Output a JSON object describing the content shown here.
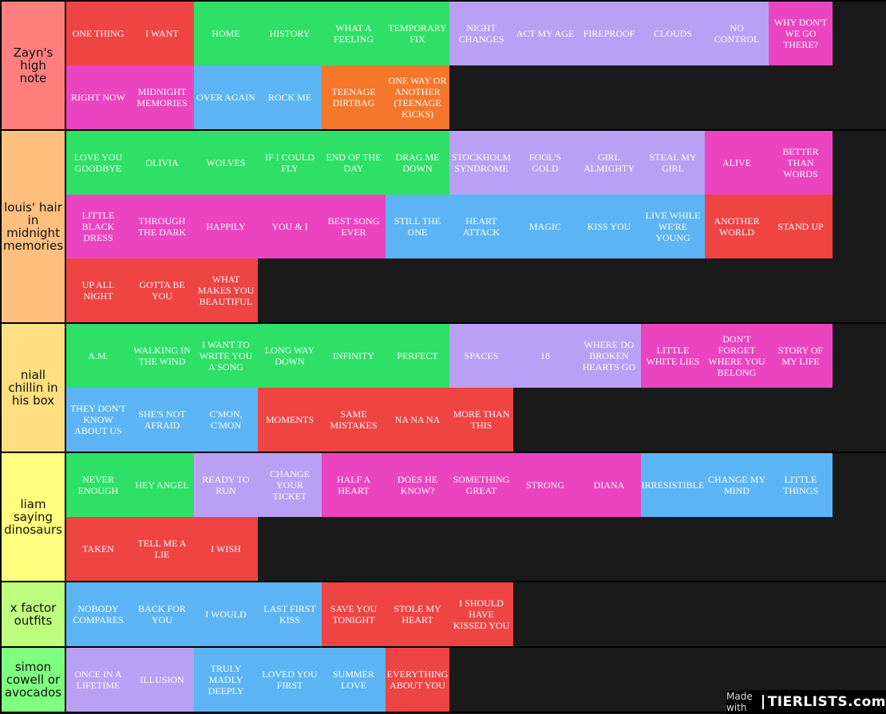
{
  "tiers": [
    {
      "label": "Zayn's high note",
      "color": "#ff7f7f",
      "items": [
        {
          "text": "ONE THING",
          "color": "red"
        },
        {
          "text": "I WANT",
          "color": "red"
        },
        {
          "text": "HOME",
          "color": "green"
        },
        {
          "text": "HISTORY",
          "color": "green"
        },
        {
          "text": "WHAT A FEELING",
          "color": "green"
        },
        {
          "text": "TEMPORARY FIX",
          "color": "green"
        },
        {
          "text": "NIGHT CHANGES",
          "color": "purple"
        },
        {
          "text": "ACT MY AGE",
          "color": "purple"
        },
        {
          "text": "FIREPROOF",
          "color": "purple"
        },
        {
          "text": "CLOUDS",
          "color": "purple"
        },
        {
          "text": "NO CONTROL",
          "color": "purple"
        },
        {
          "text": "WHY DON'T WE GO THERE?",
          "color": "pink"
        },
        {
          "text": "RIGHT NOW",
          "color": "pink"
        },
        {
          "text": "MIDNIGHT MEMORIES",
          "color": "pink"
        },
        {
          "text": "OVER AGAIN",
          "color": "blue"
        },
        {
          "text": "ROCK ME",
          "color": "blue"
        },
        {
          "text": "TEENAGE DIRTBAG",
          "color": "orange"
        },
        {
          "text": "ONE WAY OR ANOTHER (TEENAGE KICKS)",
          "color": "orange"
        }
      ]
    },
    {
      "label": "louis' hair in midnight memories",
      "color": "#ffbf7f",
      "items": [
        {
          "text": "LOVE YOU GOODBYE",
          "color": "green"
        },
        {
          "text": "OLIVIA",
          "color": "green"
        },
        {
          "text": "WOLVES",
          "color": "green"
        },
        {
          "text": "IF I COULD FLY",
          "color": "green"
        },
        {
          "text": "END OF THE DAY",
          "color": "green"
        },
        {
          "text": "DRAG ME DOWN",
          "color": "green"
        },
        {
          "text": "STOCKHOLM SYNDROME",
          "color": "purple"
        },
        {
          "text": "FOOL'S GOLD",
          "color": "purple"
        },
        {
          "text": "GIRL ALMIGHTY",
          "color": "purple"
        },
        {
          "text": "STEAL MY GIRL",
          "color": "purple"
        },
        {
          "text": "ALIVE",
          "color": "pink"
        },
        {
          "text": "BETTER THAN WORDS",
          "color": "pink"
        },
        {
          "text": "LITTLE BLACK DRESS",
          "color": "pink"
        },
        {
          "text": "THROUGH THE DARK",
          "color": "pink"
        },
        {
          "text": "HAPPILY",
          "color": "pink"
        },
        {
          "text": "YOU & I",
          "color": "pink"
        },
        {
          "text": "BEST SONG EVER",
          "color": "pink"
        },
        {
          "text": "STILL THE ONE",
          "color": "blue"
        },
        {
          "text": "HEART ATTACK",
          "color": "blue"
        },
        {
          "text": "MAGIC",
          "color": "blue"
        },
        {
          "text": "KISS YOU",
          "color": "blue"
        },
        {
          "text": "LIVE WHILE WE'RE YOUNG",
          "color": "blue"
        },
        {
          "text": "ANOTHER WORLD",
          "color": "red"
        },
        {
          "text": "STAND UP",
          "color": "red"
        },
        {
          "text": "UP ALL NIGHT",
          "color": "red"
        },
        {
          "text": "GOTTA BE YOU",
          "color": "red"
        },
        {
          "text": "WHAT MAKES YOU BEAUTIFUL",
          "color": "red"
        }
      ]
    },
    {
      "label": "niall chillin in his box",
      "color": "#ffdf7f",
      "items": [
        {
          "text": "A.M.",
          "color": "green"
        },
        {
          "text": "WALKING IN THE WIND",
          "color": "green"
        },
        {
          "text": "I WANT TO WRITE YOU A SONG",
          "color": "green"
        },
        {
          "text": "LONG WAY DOWN",
          "color": "green"
        },
        {
          "text": "INFINITY",
          "color": "green"
        },
        {
          "text": "PERFECT",
          "color": "green"
        },
        {
          "text": "SPACES",
          "color": "purple"
        },
        {
          "text": "18",
          "color": "purple"
        },
        {
          "text": "WHERE DO BROKEN HEARTS GO",
          "color": "purple"
        },
        {
          "text": "LITTLE WHITE LIES",
          "color": "pink"
        },
        {
          "text": "DON'T FORGET WHERE YOU BELONG",
          "color": "pink"
        },
        {
          "text": "STORY OF MY LIFE",
          "color": "pink"
        },
        {
          "text": "THEY DON'T KNOW ABOUT US",
          "color": "blue"
        },
        {
          "text": "SHE'S NOT AFRAID",
          "color": "blue"
        },
        {
          "text": "C'MON, C'MON",
          "color": "blue"
        },
        {
          "text": "MOMENTS",
          "color": "red"
        },
        {
          "text": "SAME MISTAKES",
          "color": "red"
        },
        {
          "text": "NA NA NA",
          "color": "red"
        },
        {
          "text": "MORE THAN THIS",
          "color": "red"
        }
      ]
    },
    {
      "label": "liam saying dinosaurs",
      "color": "#ffff7f",
      "items": [
        {
          "text": "NEVER ENOUGH",
          "color": "green"
        },
        {
          "text": "HEY ANGEL",
          "color": "green"
        },
        {
          "text": "READY TO RUN",
          "color": "purple"
        },
        {
          "text": "CHANGE YOUR TICKET",
          "color": "purple"
        },
        {
          "text": "HALF A HEART",
          "color": "pink"
        },
        {
          "text": "DOES HE KNOW?",
          "color": "pink"
        },
        {
          "text": "SOMETHING GREAT",
          "color": "pink"
        },
        {
          "text": "STRONG",
          "color": "pink"
        },
        {
          "text": "DIANA",
          "color": "pink"
        },
        {
          "text": "IRRESISTIBLE",
          "color": "blue"
        },
        {
          "text": "CHANGE MY MIND",
          "color": "blue"
        },
        {
          "text": "LITTLE THINGS",
          "color": "blue"
        },
        {
          "text": "TAKEN",
          "color": "red"
        },
        {
          "text": "TELL ME A LIE",
          "color": "red"
        },
        {
          "text": "I WISH",
          "color": "red"
        }
      ]
    },
    {
      "label": "x factor outfits",
      "color": "#bfff7f",
      "items": [
        {
          "text": "NOBODY COMPARES",
          "color": "blue"
        },
        {
          "text": "BACK FOR YOU",
          "color": "blue"
        },
        {
          "text": "I WOULD",
          "color": "blue"
        },
        {
          "text": "LAST FIRST KISS",
          "color": "blue"
        },
        {
          "text": "SAVE YOU TONIGHT",
          "color": "red"
        },
        {
          "text": "STOLE MY HEART",
          "color": "red"
        },
        {
          "text": "I SHOULD HAVE KISSED YOU",
          "color": "red"
        }
      ]
    },
    {
      "label": "simon cowell or avocados",
      "color": "#7fff7f",
      "items": [
        {
          "text": "ONCE IN A LIFETIME",
          "color": "purple"
        },
        {
          "text": "ILLUSION",
          "color": "purple"
        },
        {
          "text": "TRULY MADLY DEEPLY",
          "color": "blue"
        },
        {
          "text": "LOVED YOU FIRST",
          "color": "blue"
        },
        {
          "text": "SUMMER LOVE",
          "color": "blue"
        },
        {
          "text": "EVERYTHING ABOUT YOU",
          "color": "red"
        }
      ]
    }
  ],
  "watermark": {
    "made_with": "Made with",
    "logo": "TIERLISTS.com"
  }
}
